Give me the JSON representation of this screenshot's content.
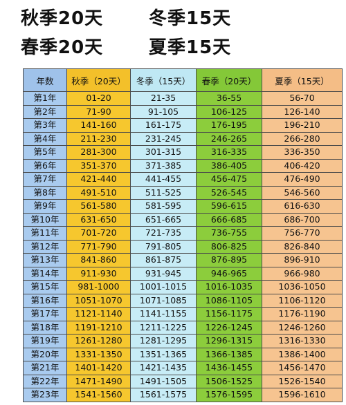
{
  "header": {
    "line1_left": "秋季20天",
    "line1_right": "冬季15天",
    "line2_left": "春季20天",
    "line2_right": "夏季15天"
  },
  "table": {
    "columns": [
      "年数",
      "秋季（20天）",
      "冬季（15天）",
      "春季（20天）",
      "夏季（15天）"
    ],
    "colors": {
      "year": "#a9cbef",
      "autumn": "#f6c72e",
      "winter": "#c7ecf6",
      "spring": "#8ccd3c",
      "summer": "#f6c490"
    },
    "rows": [
      [
        "第1年",
        "01-20",
        "21-35",
        "36-55",
        "56-70"
      ],
      [
        "第2年",
        "71-90",
        "91-105",
        "106-125",
        "126-140"
      ],
      [
        "第3年",
        "141-160",
        "161-175",
        "176-195",
        "196-210"
      ],
      [
        "第4年",
        "211-230",
        "231-245",
        "246-265",
        "266-280"
      ],
      [
        "第5年",
        "281-300",
        "301-315",
        "316-335",
        "336-350"
      ],
      [
        "第6年",
        "351-370",
        "371-385",
        "386-405",
        "406-420"
      ],
      [
        "第7年",
        "421-440",
        "441-455",
        "456-475",
        "476-490"
      ],
      [
        "第8年",
        "491-510",
        "511-525",
        "526-545",
        "546-560"
      ],
      [
        "第9年",
        "561-580",
        "581-595",
        "596-615",
        "616-630"
      ],
      [
        "第10年",
        "631-650",
        "651-665",
        "666-685",
        "686-700"
      ],
      [
        "第11年",
        "701-720",
        "721-735",
        "736-755",
        "756-770"
      ],
      [
        "第12年",
        "771-790",
        "791-805",
        "806-825",
        "826-840"
      ],
      [
        "第13年",
        "841-860",
        "861-875",
        "876-895",
        "896-910"
      ],
      [
        "第14年",
        "911-930",
        "931-945",
        "946-965",
        "966-980"
      ],
      [
        "第15年",
        "981-1000",
        "1001-1015",
        "1016-1035",
        "1036-1050"
      ],
      [
        "第16年",
        "1051-1070",
        "1071-1085",
        "1086-1105",
        "1106-1120"
      ],
      [
        "第17年",
        "1121-1140",
        "1141-1155",
        "1156-1175",
        "1176-1190"
      ],
      [
        "第18年",
        "1191-1210",
        "1211-1225",
        "1226-1245",
        "1246-1260"
      ],
      [
        "第19年",
        "1261-1280",
        "1281-1295",
        "1296-1315",
        "1316-1330"
      ],
      [
        "第20年",
        "1331-1350",
        "1351-1365",
        "1366-1385",
        "1386-1400"
      ],
      [
        "第21年",
        "1401-1420",
        "1421-1435",
        "1436-1455",
        "1456-1470"
      ],
      [
        "第22年",
        "1471-1490",
        "1491-1505",
        "1506-1525",
        "1526-1540"
      ],
      [
        "第23年",
        "1541-1560",
        "1561-1575",
        "1576-1595",
        "1596-1610"
      ]
    ]
  }
}
